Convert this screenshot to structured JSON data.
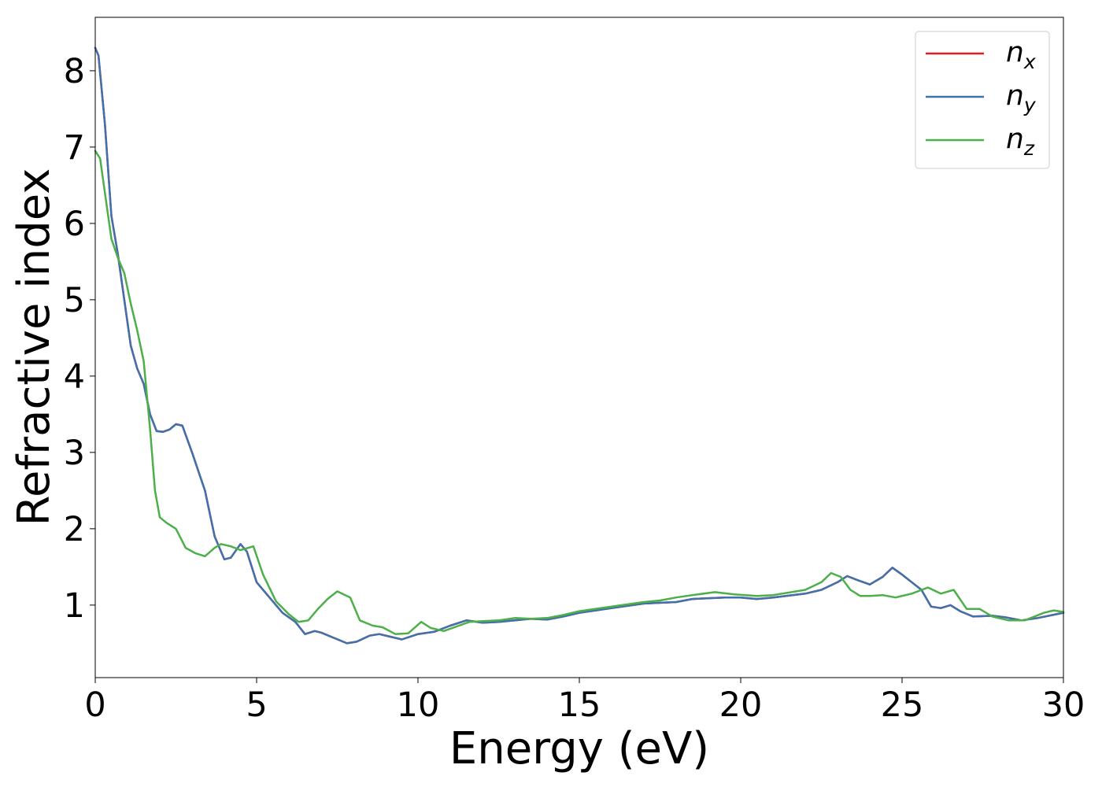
{
  "chart_data": {
    "type": "line",
    "xlabel": "Energy (eV)",
    "ylabel": "Refractive index",
    "xlim": [
      0,
      30
    ],
    "ylim": [
      0.05,
      8.7
    ],
    "xticks": [
      0,
      5,
      10,
      15,
      20,
      25,
      30
    ],
    "yticks": [
      1,
      2,
      3,
      4,
      5,
      6,
      7,
      8
    ],
    "grid": false,
    "legend_position": "top-right",
    "colors": {
      "n_x": "#e41a1c",
      "n_y": "#3f72ad",
      "n_z": "#4daf4a"
    },
    "series": [
      {
        "key": "n_x",
        "name": "n_x",
        "legend_base": "n",
        "legend_sub": "x",
        "points": [
          [
            0,
            8.3
          ],
          [
            0.1,
            8.2
          ],
          [
            0.3,
            7.3
          ],
          [
            0.5,
            6.1
          ],
          [
            0.7,
            5.6
          ],
          [
            0.9,
            5.0
          ],
          [
            1.1,
            4.4
          ],
          [
            1.3,
            4.1
          ],
          [
            1.5,
            3.9
          ],
          [
            1.7,
            3.5
          ],
          [
            1.9,
            3.28
          ],
          [
            2.1,
            3.27
          ],
          [
            2.3,
            3.3
          ],
          [
            2.5,
            3.37
          ],
          [
            2.7,
            3.35
          ],
          [
            3.0,
            3.0
          ],
          [
            3.4,
            2.5
          ],
          [
            3.7,
            1.9
          ],
          [
            4.0,
            1.6
          ],
          [
            4.2,
            1.62
          ],
          [
            4.5,
            1.8
          ],
          [
            4.7,
            1.7
          ],
          [
            5.0,
            1.3
          ],
          [
            5.4,
            1.1
          ],
          [
            5.8,
            0.9
          ],
          [
            6.2,
            0.78
          ],
          [
            6.5,
            0.62
          ],
          [
            6.8,
            0.66
          ],
          [
            7.0,
            0.64
          ],
          [
            7.4,
            0.57
          ],
          [
            7.8,
            0.5
          ],
          [
            8.1,
            0.52
          ],
          [
            8.5,
            0.6
          ],
          [
            8.8,
            0.62
          ],
          [
            9.1,
            0.59
          ],
          [
            9.5,
            0.55
          ],
          [
            10.0,
            0.62
          ],
          [
            10.5,
            0.65
          ],
          [
            11.0,
            0.73
          ],
          [
            11.5,
            0.8
          ],
          [
            12.0,
            0.77
          ],
          [
            12.5,
            0.78
          ],
          [
            13.0,
            0.8
          ],
          [
            13.5,
            0.82
          ],
          [
            14.0,
            0.81
          ],
          [
            14.5,
            0.85
          ],
          [
            15.0,
            0.9
          ],
          [
            16.0,
            0.96
          ],
          [
            17.0,
            1.02
          ],
          [
            18.0,
            1.04
          ],
          [
            18.5,
            1.08
          ],
          [
            19.5,
            1.1
          ],
          [
            20.0,
            1.1
          ],
          [
            20.5,
            1.08
          ],
          [
            21.0,
            1.1
          ],
          [
            22.0,
            1.15
          ],
          [
            22.5,
            1.2
          ],
          [
            23.0,
            1.3
          ],
          [
            23.3,
            1.38
          ],
          [
            23.6,
            1.33
          ],
          [
            24.0,
            1.27
          ],
          [
            24.4,
            1.37
          ],
          [
            24.7,
            1.49
          ],
          [
            25.0,
            1.4
          ],
          [
            25.3,
            1.3
          ],
          [
            25.6,
            1.2
          ],
          [
            25.9,
            0.98
          ],
          [
            26.2,
            0.96
          ],
          [
            26.5,
            1.0
          ],
          [
            26.8,
            0.92
          ],
          [
            27.2,
            0.85
          ],
          [
            27.8,
            0.86
          ],
          [
            28.2,
            0.84
          ],
          [
            28.7,
            0.8
          ],
          [
            29.2,
            0.83
          ],
          [
            30.0,
            0.9
          ]
        ]
      },
      {
        "key": "n_y",
        "name": "n_y",
        "legend_base": "n",
        "legend_sub": "y",
        "points": [
          [
            0,
            8.3
          ],
          [
            0.1,
            8.2
          ],
          [
            0.3,
            7.3
          ],
          [
            0.5,
            6.1
          ],
          [
            0.7,
            5.6
          ],
          [
            0.9,
            5.0
          ],
          [
            1.1,
            4.4
          ],
          [
            1.3,
            4.1
          ],
          [
            1.5,
            3.9
          ],
          [
            1.7,
            3.5
          ],
          [
            1.9,
            3.28
          ],
          [
            2.1,
            3.27
          ],
          [
            2.3,
            3.3
          ],
          [
            2.5,
            3.37
          ],
          [
            2.7,
            3.35
          ],
          [
            3.0,
            3.0
          ],
          [
            3.4,
            2.5
          ],
          [
            3.7,
            1.9
          ],
          [
            4.0,
            1.6
          ],
          [
            4.2,
            1.62
          ],
          [
            4.5,
            1.8
          ],
          [
            4.7,
            1.7
          ],
          [
            5.0,
            1.3
          ],
          [
            5.4,
            1.1
          ],
          [
            5.8,
            0.9
          ],
          [
            6.2,
            0.78
          ],
          [
            6.5,
            0.62
          ],
          [
            6.8,
            0.66
          ],
          [
            7.0,
            0.64
          ],
          [
            7.4,
            0.57
          ],
          [
            7.8,
            0.5
          ],
          [
            8.1,
            0.52
          ],
          [
            8.5,
            0.6
          ],
          [
            8.8,
            0.62
          ],
          [
            9.1,
            0.59
          ],
          [
            9.5,
            0.55
          ],
          [
            10.0,
            0.62
          ],
          [
            10.5,
            0.65
          ],
          [
            11.0,
            0.73
          ],
          [
            11.5,
            0.8
          ],
          [
            12.0,
            0.77
          ],
          [
            12.5,
            0.78
          ],
          [
            13.0,
            0.8
          ],
          [
            13.5,
            0.82
          ],
          [
            14.0,
            0.81
          ],
          [
            14.5,
            0.85
          ],
          [
            15.0,
            0.9
          ],
          [
            16.0,
            0.96
          ],
          [
            17.0,
            1.02
          ],
          [
            18.0,
            1.04
          ],
          [
            18.5,
            1.08
          ],
          [
            19.5,
            1.1
          ],
          [
            20.0,
            1.1
          ],
          [
            20.5,
            1.08
          ],
          [
            21.0,
            1.1
          ],
          [
            22.0,
            1.15
          ],
          [
            22.5,
            1.2
          ],
          [
            23.0,
            1.3
          ],
          [
            23.3,
            1.38
          ],
          [
            23.6,
            1.33
          ],
          [
            24.0,
            1.27
          ],
          [
            24.4,
            1.37
          ],
          [
            24.7,
            1.49
          ],
          [
            25.0,
            1.4
          ],
          [
            25.3,
            1.3
          ],
          [
            25.6,
            1.2
          ],
          [
            25.9,
            0.98
          ],
          [
            26.2,
            0.96
          ],
          [
            26.5,
            1.0
          ],
          [
            26.8,
            0.92
          ],
          [
            27.2,
            0.85
          ],
          [
            27.8,
            0.86
          ],
          [
            28.2,
            0.84
          ],
          [
            28.7,
            0.8
          ],
          [
            29.2,
            0.83
          ],
          [
            30.0,
            0.9
          ]
        ]
      },
      {
        "key": "n_z",
        "name": "n_z",
        "legend_base": "n",
        "legend_sub": "z",
        "points": [
          [
            0,
            6.95
          ],
          [
            0.15,
            6.85
          ],
          [
            0.3,
            6.4
          ],
          [
            0.5,
            5.8
          ],
          [
            0.7,
            5.55
          ],
          [
            0.9,
            5.35
          ],
          [
            1.1,
            4.95
          ],
          [
            1.3,
            4.6
          ],
          [
            1.5,
            4.2
          ],
          [
            1.7,
            3.3
          ],
          [
            1.85,
            2.5
          ],
          [
            2.0,
            2.15
          ],
          [
            2.2,
            2.08
          ],
          [
            2.5,
            2.0
          ],
          [
            2.8,
            1.75
          ],
          [
            3.1,
            1.68
          ],
          [
            3.4,
            1.64
          ],
          [
            3.7,
            1.75
          ],
          [
            3.9,
            1.8
          ],
          [
            4.2,
            1.77
          ],
          [
            4.5,
            1.72
          ],
          [
            4.9,
            1.77
          ],
          [
            5.2,
            1.4
          ],
          [
            5.6,
            1.05
          ],
          [
            6.0,
            0.88
          ],
          [
            6.3,
            0.78
          ],
          [
            6.6,
            0.8
          ],
          [
            6.9,
            0.95
          ],
          [
            7.2,
            1.08
          ],
          [
            7.5,
            1.18
          ],
          [
            7.9,
            1.1
          ],
          [
            8.2,
            0.8
          ],
          [
            8.6,
            0.73
          ],
          [
            8.9,
            0.71
          ],
          [
            9.3,
            0.62
          ],
          [
            9.7,
            0.63
          ],
          [
            10.1,
            0.78
          ],
          [
            10.4,
            0.7
          ],
          [
            10.8,
            0.66
          ],
          [
            11.2,
            0.72
          ],
          [
            11.6,
            0.78
          ],
          [
            12.0,
            0.79
          ],
          [
            12.5,
            0.8
          ],
          [
            13.0,
            0.83
          ],
          [
            13.5,
            0.82
          ],
          [
            14.0,
            0.83
          ],
          [
            14.5,
            0.87
          ],
          [
            15.0,
            0.92
          ],
          [
            16.0,
            0.98
          ],
          [
            17.0,
            1.04
          ],
          [
            17.5,
            1.06
          ],
          [
            18.0,
            1.1
          ],
          [
            18.5,
            1.13
          ],
          [
            19.2,
            1.17
          ],
          [
            19.8,
            1.14
          ],
          [
            20.5,
            1.12
          ],
          [
            21.0,
            1.13
          ],
          [
            22.0,
            1.2
          ],
          [
            22.5,
            1.3
          ],
          [
            22.8,
            1.42
          ],
          [
            23.1,
            1.37
          ],
          [
            23.4,
            1.2
          ],
          [
            23.7,
            1.12
          ],
          [
            24.0,
            1.12
          ],
          [
            24.4,
            1.13
          ],
          [
            24.8,
            1.1
          ],
          [
            25.3,
            1.15
          ],
          [
            25.8,
            1.23
          ],
          [
            26.2,
            1.15
          ],
          [
            26.6,
            1.2
          ],
          [
            27.0,
            0.95
          ],
          [
            27.4,
            0.95
          ],
          [
            27.8,
            0.85
          ],
          [
            28.3,
            0.8
          ],
          [
            28.8,
            0.8
          ],
          [
            29.4,
            0.9
          ],
          [
            29.7,
            0.93
          ],
          [
            30.0,
            0.91
          ]
        ]
      }
    ]
  }
}
